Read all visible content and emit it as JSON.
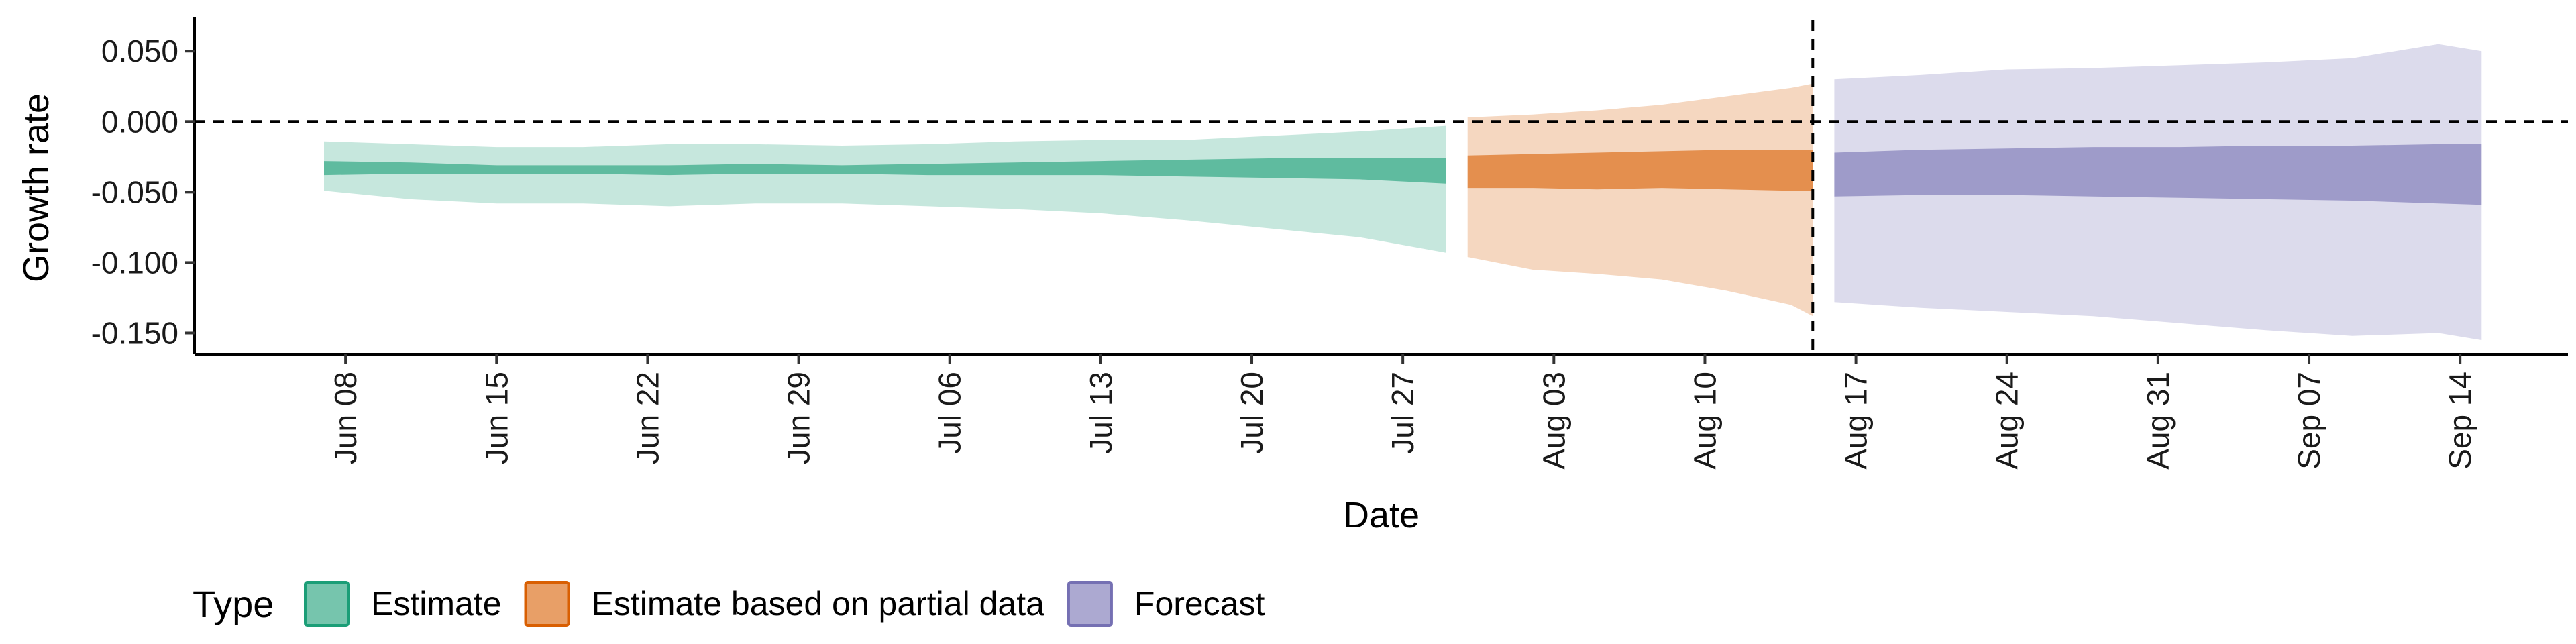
{
  "chart_data": {
    "type": "area",
    "title": "",
    "xlabel": "Date",
    "ylabel": "Growth rate",
    "x_type": "date",
    "xlim": [
      "2020-06-01",
      "2020-09-19"
    ],
    "ylim": [
      -0.165,
      0.072
    ],
    "y_ticks": [
      0.05,
      0.0,
      -0.05,
      -0.1,
      -0.15
    ],
    "y_tick_labels": [
      "0.050",
      "0.000",
      "-0.050",
      "-0.100",
      "-0.150"
    ],
    "x_ticks": [
      "2020-06-08",
      "2020-06-15",
      "2020-06-22",
      "2020-06-29",
      "2020-07-06",
      "2020-07-13",
      "2020-07-20",
      "2020-07-27",
      "2020-08-03",
      "2020-08-10",
      "2020-08-17",
      "2020-08-24",
      "2020-08-31",
      "2020-09-07",
      "2020-09-14"
    ],
    "x_tick_labels": [
      "Jun 08",
      "Jun 15",
      "Jun 22",
      "Jun 29",
      "Jul 06",
      "Jul 13",
      "Jul 20",
      "Jul 27",
      "Aug 03",
      "Aug 10",
      "Aug 17",
      "Aug 24",
      "Aug 31",
      "Sep 07",
      "Sep 14"
    ],
    "grid": false,
    "hline_y": 0.0,
    "vline_x": "2020-08-15",
    "legend": {
      "position": "bottom-left",
      "title": "Type",
      "entries": [
        "Estimate",
        "Estimate based on partial data",
        "Forecast"
      ]
    },
    "series": [
      {
        "name": "Estimate",
        "color": "#1b9e77",
        "dates": [
          "2020-06-07",
          "2020-06-11",
          "2020-06-15",
          "2020-06-19",
          "2020-06-23",
          "2020-06-27",
          "2020-07-01",
          "2020-07-05",
          "2020-07-09",
          "2020-07-13",
          "2020-07-17",
          "2020-07-21",
          "2020-07-25",
          "2020-07-29"
        ],
        "outer_lower": [
          -0.049,
          -0.055,
          -0.058,
          -0.058,
          -0.06,
          -0.058,
          -0.058,
          -0.06,
          -0.062,
          -0.065,
          -0.07,
          -0.076,
          -0.082,
          -0.093
        ],
        "inner_lower": [
          -0.038,
          -0.037,
          -0.037,
          -0.037,
          -0.038,
          -0.037,
          -0.037,
          -0.038,
          -0.038,
          -0.038,
          -0.039,
          -0.04,
          -0.041,
          -0.044
        ],
        "inner_upper": [
          -0.028,
          -0.029,
          -0.031,
          -0.031,
          -0.031,
          -0.03,
          -0.031,
          -0.03,
          -0.029,
          -0.028,
          -0.027,
          -0.026,
          -0.026,
          -0.026
        ],
        "outer_upper": [
          -0.014,
          -0.016,
          -0.018,
          -0.018,
          -0.016,
          -0.016,
          -0.017,
          -0.016,
          -0.014,
          -0.013,
          -0.013,
          -0.01,
          -0.007,
          -0.003
        ]
      },
      {
        "name": "Estimate based on partial data",
        "color": "#d95f02",
        "dates": [
          "2020-07-30",
          "2020-08-02",
          "2020-08-05",
          "2020-08-08",
          "2020-08-11",
          "2020-08-14",
          "2020-08-15"
        ],
        "outer_lower": [
          -0.096,
          -0.105,
          -0.108,
          -0.112,
          -0.12,
          -0.13,
          -0.138
        ],
        "inner_lower": [
          -0.047,
          -0.047,
          -0.048,
          -0.047,
          -0.048,
          -0.049,
          -0.049
        ],
        "inner_upper": [
          -0.024,
          -0.023,
          -0.022,
          -0.021,
          -0.02,
          -0.02,
          -0.02
        ],
        "outer_upper": [
          0.003,
          0.005,
          0.008,
          0.012,
          0.018,
          0.024,
          0.027
        ]
      },
      {
        "name": "Forecast",
        "color": "#7570b3",
        "dates": [
          "2020-08-16",
          "2020-08-20",
          "2020-08-24",
          "2020-08-28",
          "2020-09-01",
          "2020-09-05",
          "2020-09-09",
          "2020-09-13",
          "2020-09-15"
        ],
        "outer_lower": [
          -0.128,
          -0.132,
          -0.135,
          -0.138,
          -0.143,
          -0.148,
          -0.152,
          -0.15,
          -0.155
        ],
        "inner_lower": [
          -0.053,
          -0.052,
          -0.052,
          -0.053,
          -0.054,
          -0.055,
          -0.056,
          -0.058,
          -0.059
        ],
        "inner_upper": [
          -0.022,
          -0.02,
          -0.019,
          -0.018,
          -0.018,
          -0.017,
          -0.017,
          -0.016,
          -0.016
        ],
        "outer_upper": [
          0.03,
          0.033,
          0.037,
          0.038,
          0.04,
          0.042,
          0.045,
          0.055,
          0.05
        ]
      }
    ]
  }
}
